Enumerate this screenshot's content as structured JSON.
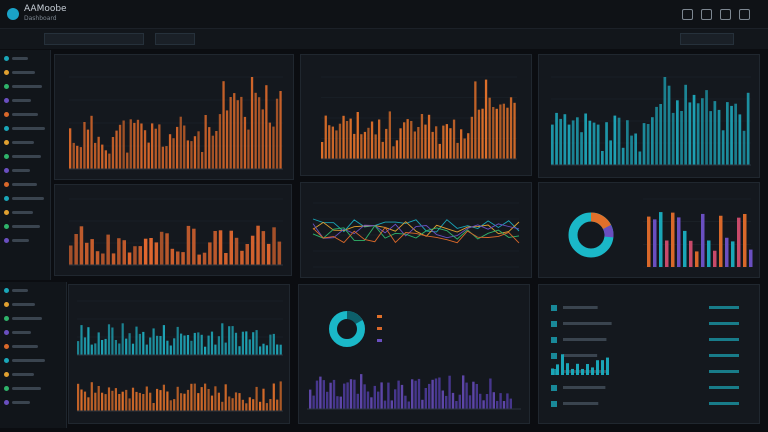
{
  "app": {
    "title": "AAMoobe",
    "subtitle": "Dashboard"
  },
  "toolbar": {
    "search": "",
    "btn1": "",
    "btn2": "",
    "btn3": ""
  },
  "panels": [
    {
      "title": "",
      "sub": ""
    },
    {
      "title": "",
      "sub": ""
    },
    {
      "title": "",
      "sub": ""
    },
    {
      "title": "",
      "sub": ""
    },
    {
      "title": "",
      "sub": ""
    },
    {
      "title": "",
      "sub": ""
    },
    {
      "title": "",
      "sub": ""
    },
    {
      "title": "",
      "sub": ""
    },
    {
      "title": "",
      "sub": ""
    }
  ],
  "colors": {
    "orange": "#e0702a",
    "teal": "#1aa6b8",
    "purple": "#6a4fc0",
    "bg": "#0b0d11"
  },
  "icons": [
    "logo-icon",
    "menu-icon",
    "settings-icon",
    "user-icon"
  ]
}
